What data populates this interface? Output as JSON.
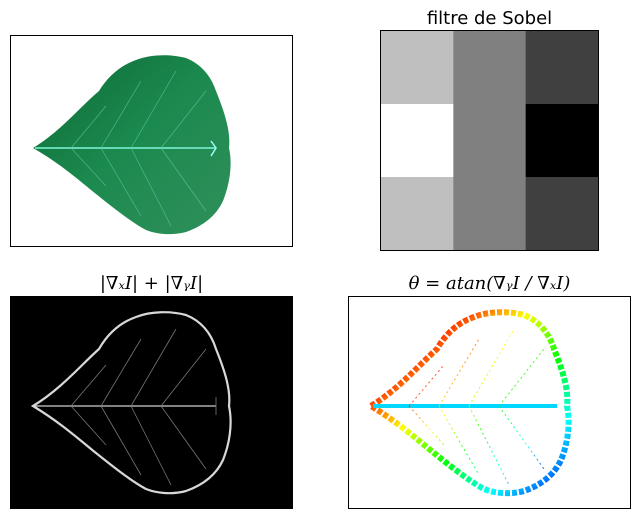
{
  "figure": {
    "panels": [
      {
        "id": "leaf-photo",
        "title": ""
      },
      {
        "id": "sobel-kernel",
        "title": "filtre de Sobel"
      },
      {
        "id": "gradient-magnitude",
        "title": "|∇ₓI| + |∇ᵧI|"
      },
      {
        "id": "gradient-orientation",
        "title": "θ = atan(∇ᵧI / ∇ₓI)"
      }
    ]
  },
  "chart_data": [
    {
      "type": "image",
      "title": "",
      "description": "photograph of a poplar leaf on white background"
    },
    {
      "type": "heatmap",
      "title": "filtre de Sobel",
      "colormap": "gray",
      "rows": 3,
      "cols": 3,
      "values": [
        [
          1,
          0,
          -1
        ],
        [
          2,
          0,
          -2
        ],
        [
          1,
          0,
          -1
        ]
      ],
      "grid": false
    },
    {
      "type": "image",
      "title": "|∇ₓI| + |∇ᵧI|",
      "colormap": "gray",
      "description": "gradient magnitude of leaf image"
    },
    {
      "type": "image",
      "title": "θ = atan(∇ᵧI / ∇ₓI)",
      "colormap": "hsv",
      "description": "gradient orientation of leaf image"
    }
  ],
  "colors": {
    "leaf_dark": "#0c6a34",
    "leaf_mid": "#1f8a4c",
    "vein": "#6ff0d0",
    "edge": "#e8e8e8",
    "background": "#ffffff"
  }
}
